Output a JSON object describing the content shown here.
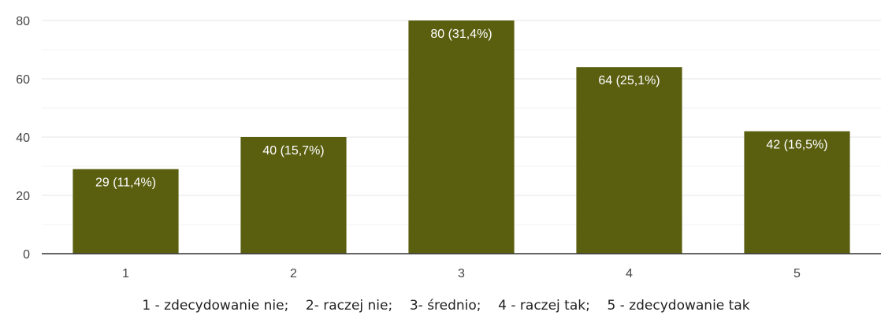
{
  "chart_data": {
    "type": "bar",
    "categories": [
      "1",
      "2",
      "3",
      "4",
      "5"
    ],
    "values": [
      29,
      40,
      80,
      64,
      42
    ],
    "data_labels": [
      "29 (11,4%)",
      "40 (15,7%)",
      "80 (31,4%)",
      "64 (25,1%)",
      "42 (16,5%)"
    ],
    "y_ticks": [
      "0",
      "20",
      "40",
      "60",
      "80"
    ],
    "ylim": [
      0,
      80
    ],
    "title": "",
    "xlabel": "",
    "ylabel": "",
    "grid": true,
    "bar_color": "#5a5f10",
    "gridline_color": "#e6e6e6",
    "axis_color": "#333333"
  },
  "legend_note": "1 - zdecydowanie nie;    2- raczej nie;    3- średnio;    4 - raczej tak;    5 - zdecydowanie tak"
}
